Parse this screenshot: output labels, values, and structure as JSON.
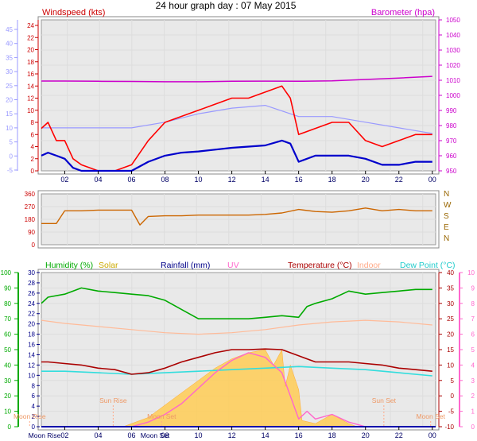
{
  "title": "24 hour graph day : 07 May 2015",
  "x_ticks": [
    "02",
    "04",
    "06",
    "08",
    "10",
    "12",
    "14",
    "16",
    "18",
    "20",
    "22",
    "00"
  ],
  "x_extra_labels": [
    "Moon Rise",
    "Moon Set"
  ],
  "colors": {
    "windspeed": "#ff0000",
    "windavg": "#0000cc",
    "windtemp": "#9999ff",
    "barometer": "#cc00cc",
    "direction": "#cc6600",
    "humidity": "#00aa00",
    "solar": "#ffcc55",
    "rainfall": "#0000aa",
    "uv": "#ff66cc",
    "temperature": "#aa0000",
    "indoor": "#ffbb99",
    "dewpoint": "#33dddd",
    "chart_bg": "#eeeeee"
  },
  "chart_data": [
    {
      "type": "line",
      "panel": "wind-barometer",
      "left_axis_title": "Windspeed (kts)",
      "right_axis_title": "Barometer (hpa)",
      "left_ticks": [
        "24",
        "22",
        "20",
        "18",
        "16",
        "14",
        "12",
        "10",
        "8",
        "6",
        "4",
        "2",
        "0"
      ],
      "left_ylim": [
        0,
        25
      ],
      "outer_ticks": [
        "45",
        "40",
        "35",
        "30",
        "25",
        "20",
        "15",
        "10",
        "5",
        "0",
        "-5"
      ],
      "outer_ylim": [
        -7,
        46
      ],
      "right_ticks": [
        "1050",
        "1040",
        "1030",
        "1020",
        "1010",
        "1000",
        "990",
        "980",
        "970",
        "960",
        "950"
      ],
      "right_ylim": [
        947,
        1053
      ],
      "x_range_hours": [
        0.6,
        24.2
      ],
      "series": [
        {
          "key": "barometer",
          "axis": "right",
          "x": [
            0.6,
            2,
            4,
            6,
            8,
            10,
            12,
            14,
            16,
            18,
            20,
            22,
            24
          ],
          "y": [
            1009.5,
            1009.5,
            1009.3,
            1009.2,
            1009,
            1009,
            1009.3,
            1009.4,
            1009.3,
            1009.6,
            1010.5,
            1011.5,
            1012.6
          ]
        },
        {
          "key": "windspeed",
          "axis": "left",
          "x": [
            0.6,
            1,
            1.5,
            2,
            2.5,
            3,
            4,
            5,
            6,
            7,
            8,
            9,
            10,
            11,
            12,
            13,
            14,
            15,
            15.5,
            16,
            17,
            18,
            19,
            20,
            21,
            22,
            23,
            24
          ],
          "y": [
            7,
            8,
            5,
            5,
            2,
            1,
            0,
            0,
            1,
            5,
            8,
            9,
            10,
            11,
            12,
            12,
            13,
            14,
            12,
            6,
            7,
            8,
            8,
            5,
            4,
            5,
            6,
            6
          ]
        },
        {
          "key": "windavg",
          "axis": "left",
          "x": [
            0.6,
            1,
            1.5,
            2,
            2.5,
            3,
            4,
            5,
            6,
            7,
            8,
            9,
            10,
            11,
            12,
            13,
            14,
            15,
            15.5,
            16,
            17,
            18,
            19,
            20,
            21,
            22,
            23,
            24
          ],
          "y": [
            2.5,
            3,
            2.5,
            2,
            0.5,
            0,
            0,
            0,
            0,
            1.5,
            2.5,
            3,
            3.2,
            3.5,
            3.8,
            4,
            4.2,
            5,
            4.5,
            1.5,
            2.5,
            2.5,
            2.5,
            2,
            1,
            1,
            1.5,
            1.5
          ]
        },
        {
          "key": "windtemp",
          "axis": "outer",
          "x": [
            0.6,
            2,
            4,
            6,
            8,
            10,
            12,
            14,
            16,
            18,
            20,
            22,
            24
          ],
          "y": [
            10,
            10,
            10,
            10,
            12,
            15,
            17,
            18,
            14,
            14,
            12,
            10,
            8
          ]
        }
      ]
    },
    {
      "type": "line",
      "panel": "wind-direction",
      "left_ticks": [
        "360",
        "270",
        "180",
        "90",
        "0"
      ],
      "left_ylim": [
        0,
        360
      ],
      "right_ticks": [
        "N",
        "W",
        "S",
        "E",
        "N"
      ],
      "x_range_hours": [
        0.6,
        24.2
      ],
      "series": [
        {
          "key": "direction",
          "axis": "left",
          "x": [
            0.6,
            1.5,
            2,
            3,
            4,
            5,
            6,
            6.5,
            7,
            8,
            9,
            10,
            11,
            12,
            13,
            14,
            15,
            16,
            17,
            18,
            19,
            20,
            21,
            22,
            23,
            24
          ],
          "y": [
            150,
            150,
            240,
            240,
            245,
            245,
            245,
            140,
            200,
            205,
            205,
            210,
            210,
            210,
            210,
            215,
            225,
            250,
            235,
            230,
            240,
            260,
            240,
            250,
            240,
            240
          ]
        }
      ]
    },
    {
      "type": "line",
      "panel": "temp-humidity-solar",
      "legend": [
        "Humidity (%)",
        "Solar",
        "Rainfall (mm)",
        "UV",
        "Temperature (°C)",
        "Indoor",
        "Dew Point (°C)"
      ],
      "humidity_ticks": [
        "100",
        "90",
        "80",
        "70",
        "60",
        "50",
        "40",
        "30",
        "20",
        "10",
        "0"
      ],
      "humidity_ylim": [
        0,
        100
      ],
      "rain_ticks": [
        "30",
        "28",
        "26",
        "24",
        "22",
        "20",
        "18",
        "16",
        "14",
        "12",
        "10",
        "8",
        "6",
        "4",
        "2",
        "0"
      ],
      "rain_ylim": [
        0,
        30
      ],
      "temp_ticks": [
        "40",
        "35",
        "30",
        "25",
        "20",
        "15",
        "10",
        "5",
        "0",
        "-5",
        "-10"
      ],
      "temp_ylim": [
        -10,
        40
      ],
      "uv_ticks": [
        "10",
        "9",
        "8",
        "7",
        "6",
        "5",
        "4",
        "3",
        "2",
        "1",
        "0"
      ],
      "uv_ylim": [
        0,
        10
      ],
      "x_range_hours": [
        0.6,
        24.2
      ],
      "annotations": [
        "Sun Rise",
        "Sun Set",
        "Moon Rise",
        "Moon Set"
      ],
      "series": [
        {
          "key": "humidity",
          "axis": "humidity",
          "x": [
            0.6,
            1,
            2,
            3,
            4,
            5,
            6,
            7,
            8,
            9,
            10,
            11,
            12,
            13,
            14,
            15,
            16,
            16.5,
            17,
            18,
            19,
            20,
            21,
            22,
            23,
            24
          ],
          "y": [
            80,
            84,
            86,
            90,
            88,
            87,
            86,
            85,
            82,
            76,
            70,
            70,
            70,
            70,
            71,
            72,
            71,
            78,
            80,
            83,
            88,
            86,
            87,
            88,
            89,
            89
          ]
        },
        {
          "key": "indoor",
          "axis": "temp",
          "x": [
            0.6,
            2,
            4,
            6,
            8,
            10,
            12,
            14,
            16,
            18,
            20,
            22,
            24
          ],
          "y": [
            24.5,
            23.5,
            22.5,
            21.5,
            20.5,
            20,
            20.5,
            21.5,
            23,
            24,
            24.5,
            24,
            23
          ]
        },
        {
          "key": "temperature",
          "axis": "temp",
          "x": [
            0.6,
            1,
            2,
            3,
            4,
            5,
            6,
            7,
            8,
            9,
            10,
            11,
            12,
            13,
            14,
            15,
            16,
            17,
            18,
            19,
            20,
            21,
            22,
            23,
            24
          ],
          "y": [
            11,
            11,
            10.5,
            10,
            9,
            8.5,
            7,
            7.5,
            9,
            11,
            12.5,
            14,
            15,
            15,
            15.2,
            15,
            13,
            11,
            11,
            11,
            10.5,
            10,
            9,
            8.5,
            8
          ]
        },
        {
          "key": "dewpoint",
          "axis": "temp",
          "x": [
            0.6,
            2,
            4,
            6,
            8,
            10,
            12,
            14,
            16,
            18,
            20,
            22,
            24
          ],
          "y": [
            8,
            8,
            7.5,
            7,
            7.5,
            8,
            8.5,
            9,
            9.5,
            9,
            8.5,
            7.5,
            6.5
          ]
        },
        {
          "key": "solar",
          "axis": "temp",
          "x": [
            5.5,
            6,
            7,
            8,
            9,
            10,
            11,
            12,
            13,
            14,
            14.5,
            15,
            15.2,
            15.5,
            16,
            16.2,
            17,
            18,
            19,
            19.5,
            20,
            21,
            22
          ],
          "y": [
            -10,
            -9,
            -7,
            -3,
            1,
            5,
            9,
            12,
            14,
            15,
            10,
            15,
            3,
            10,
            2,
            -8,
            -9,
            -6,
            -9,
            -10,
            -10,
            -10,
            -10
          ]
        },
        {
          "key": "uv",
          "axis": "uv",
          "x": [
            6,
            7,
            8,
            9,
            10,
            11,
            12,
            13,
            14,
            15,
            15.5,
            16,
            16.5,
            17,
            18,
            19,
            20,
            21
          ],
          "y": [
            0,
            0.3,
            0.8,
            1.5,
            2.5,
            3.5,
            4.3,
            4.8,
            4.5,
            3.5,
            2,
            0.5,
            1,
            0.5,
            0.8,
            0.3,
            0,
            0
          ]
        },
        {
          "key": "rainfall",
          "axis": "rain",
          "x": [
            0.6,
            24.2
          ],
          "y": [
            0,
            0
          ]
        }
      ]
    }
  ]
}
